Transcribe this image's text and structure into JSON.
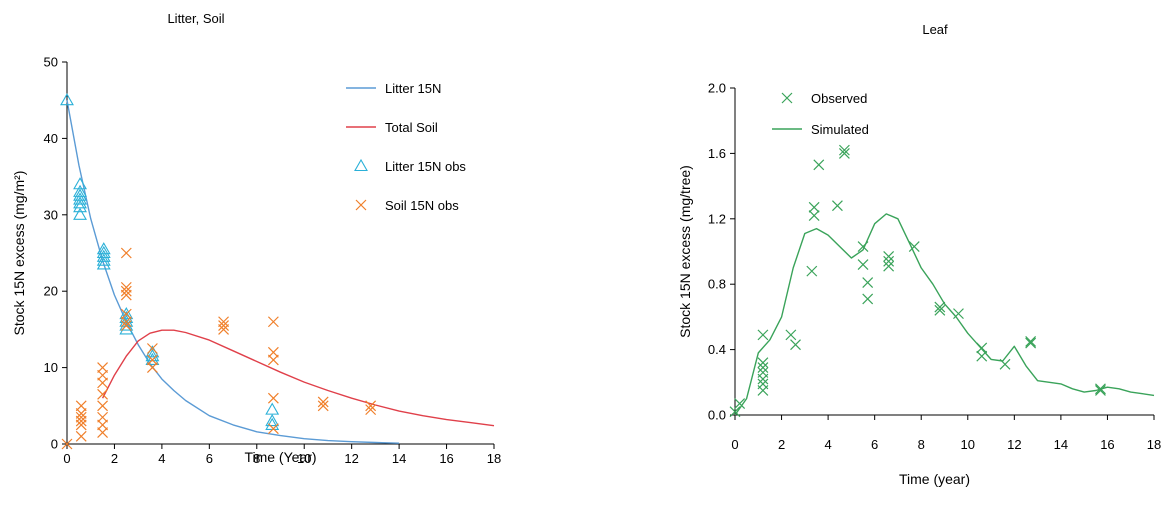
{
  "chart_data": [
    {
      "type": "scatter",
      "title": "Litter, Soil",
      "xlabel": "Time (Year)",
      "ylabel": "Stock 15N excess (mg/m²)",
      "xlim": [
        0,
        18
      ],
      "ylim": [
        0,
        50
      ],
      "xticks": [
        "0",
        "2",
        "4",
        "6",
        "8",
        "10",
        "12",
        "14",
        "16",
        "18"
      ],
      "yticks": [
        "0",
        "10",
        "20",
        "30",
        "40",
        "50"
      ],
      "grid": false,
      "legend_position": "top-right",
      "series": [
        {
          "name": "Litter 15N",
          "kind": "line",
          "color": "#5b9bd5",
          "x": [
            0,
            0.5,
            1,
            1.5,
            2,
            2.5,
            3,
            3.5,
            4,
            4.5,
            5,
            6,
            7,
            8,
            9,
            10,
            11,
            12,
            13,
            14
          ],
          "y": [
            45,
            36.5,
            29.5,
            24,
            19.5,
            16,
            13,
            10.5,
            8.5,
            7,
            5.7,
            3.7,
            2.5,
            1.6,
            1.1,
            0.7,
            0.45,
            0.3,
            0.2,
            0.1
          ]
        },
        {
          "name": "Total Soil",
          "kind": "line",
          "color": "#e0404a",
          "x": [
            1.5,
            2,
            2.5,
            3,
            3.5,
            4,
            4.5,
            5,
            6,
            7,
            8,
            9,
            10,
            11,
            12,
            13,
            14,
            15,
            16,
            17,
            18
          ],
          "y": [
            6,
            9,
            11.5,
            13.5,
            14.5,
            14.9,
            14.9,
            14.6,
            13.6,
            12.2,
            10.8,
            9.4,
            8.1,
            7,
            6,
            5.1,
            4.3,
            3.7,
            3.2,
            2.8,
            2.4
          ]
        },
        {
          "name": "Litter 15N obs",
          "kind": "marker",
          "marker": "triangle",
          "color": "#2ab0d8",
          "x": [
            0,
            0.55,
            0.55,
            0.55,
            0.55,
            0.55,
            0.55,
            0.55,
            1.55,
            1.55,
            1.55,
            1.55,
            1.55,
            2.5,
            2.5,
            2.5,
            2.5,
            2.5,
            3.6,
            3.6,
            3.6,
            8.65,
            8.65,
            8.65
          ],
          "y": [
            45,
            34,
            33,
            32,
            31.5,
            31,
            30,
            32.5,
            25.5,
            25,
            24.5,
            23.5,
            24,
            17,
            16.5,
            16,
            15,
            15.5,
            12,
            11.5,
            11,
            4.5,
            3,
            2.5
          ]
        },
        {
          "name": "Soil 15N obs",
          "kind": "marker",
          "marker": "x",
          "color": "#f07f2a",
          "x": [
            0,
            0.6,
            0.6,
            0.6,
            0.6,
            0.6,
            0.6,
            1.5,
            1.5,
            1.5,
            1.5,
            1.5,
            1.5,
            1.5,
            1.5,
            2.5,
            2.5,
            2.5,
            2.5,
            2.5,
            2.5,
            2.5,
            3.6,
            3.6,
            3.6,
            6.6,
            6.6,
            6.6,
            8.7,
            8.7,
            8.7,
            8.7,
            8.7,
            10.8,
            10.8,
            12.8,
            12.8
          ],
          "y": [
            0,
            5,
            4,
            3.5,
            3,
            2.5,
            1,
            10,
            9,
            8,
            6.5,
            5,
            3.5,
            2.5,
            1.5,
            25,
            20.5,
            20,
            19.5,
            17,
            16,
            15.5,
            12.5,
            11,
            10,
            16,
            15.5,
            15,
            16,
            12,
            11,
            6,
            2,
            5.5,
            5,
            5,
            4.5
          ]
        }
      ]
    },
    {
      "type": "scatter",
      "title": "Leaf",
      "xlabel": "Time (year)",
      "ylabel": "Stock 15N excess (mg/tree)",
      "xlim": [
        0,
        18
      ],
      "ylim": [
        0,
        2
      ],
      "xticks": [
        "0",
        "2",
        "4",
        "6",
        "8",
        "10",
        "12",
        "14",
        "16",
        "18"
      ],
      "yticks": [
        "0.0",
        "0.4",
        "0.8",
        "1.2",
        "1.6",
        "2.0"
      ],
      "grid": false,
      "legend_position": "top-right",
      "series": [
        {
          "name": "Observed",
          "kind": "marker",
          "marker": "x",
          "color": "#3aa35a",
          "x": [
            0,
            0.2,
            1.2,
            1.2,
            1.2,
            1.2,
            1.2,
            1.2,
            1.2,
            2.4,
            2.6,
            3.3,
            3.4,
            3.4,
            3.6,
            4.4,
            4.7,
            4.7,
            5.5,
            5.5,
            5.7,
            5.7,
            6.6,
            6.6,
            6.6,
            7.7,
            8.8,
            8.8,
            9.6,
            10.6,
            10.6,
            11.6,
            12.7,
            12.7,
            15.7,
            15.7
          ],
          "y": [
            0.02,
            0.07,
            0.49,
            0.32,
            0.29,
            0.26,
            0.22,
            0.19,
            0.15,
            0.49,
            0.43,
            0.88,
            1.27,
            1.22,
            1.53,
            1.28,
            1.62,
            1.6,
            1.03,
            0.92,
            0.81,
            0.71,
            0.97,
            0.94,
            0.91,
            1.03,
            0.66,
            0.64,
            0.62,
            0.41,
            0.36,
            0.31,
            0.45,
            0.44,
            0.16,
            0.15
          ]
        },
        {
          "name": "Simulated",
          "kind": "line",
          "color": "#3aa35a",
          "x": [
            0,
            0.5,
            1,
            1.5,
            2,
            2.5,
            3,
            3.5,
            4,
            4.5,
            5,
            5.5,
            6,
            6.5,
            7,
            7.5,
            8,
            8.5,
            9,
            9.5,
            10,
            10.5,
            11,
            11.5,
            12,
            12.5,
            13,
            13.5,
            14,
            14.5,
            15,
            15.5,
            16,
            16.5,
            17,
            17.5,
            18
          ],
          "y": [
            0,
            0.1,
            0.38,
            0.46,
            0.6,
            0.9,
            1.11,
            1.14,
            1.1,
            1.03,
            0.96,
            1.01,
            1.17,
            1.23,
            1.2,
            1.05,
            0.9,
            0.8,
            0.68,
            0.6,
            0.5,
            0.42,
            0.34,
            0.33,
            0.42,
            0.3,
            0.21,
            0.2,
            0.19,
            0.16,
            0.14,
            0.15,
            0.17,
            0.16,
            0.14,
            0.13,
            0.12
          ]
        }
      ]
    }
  ]
}
